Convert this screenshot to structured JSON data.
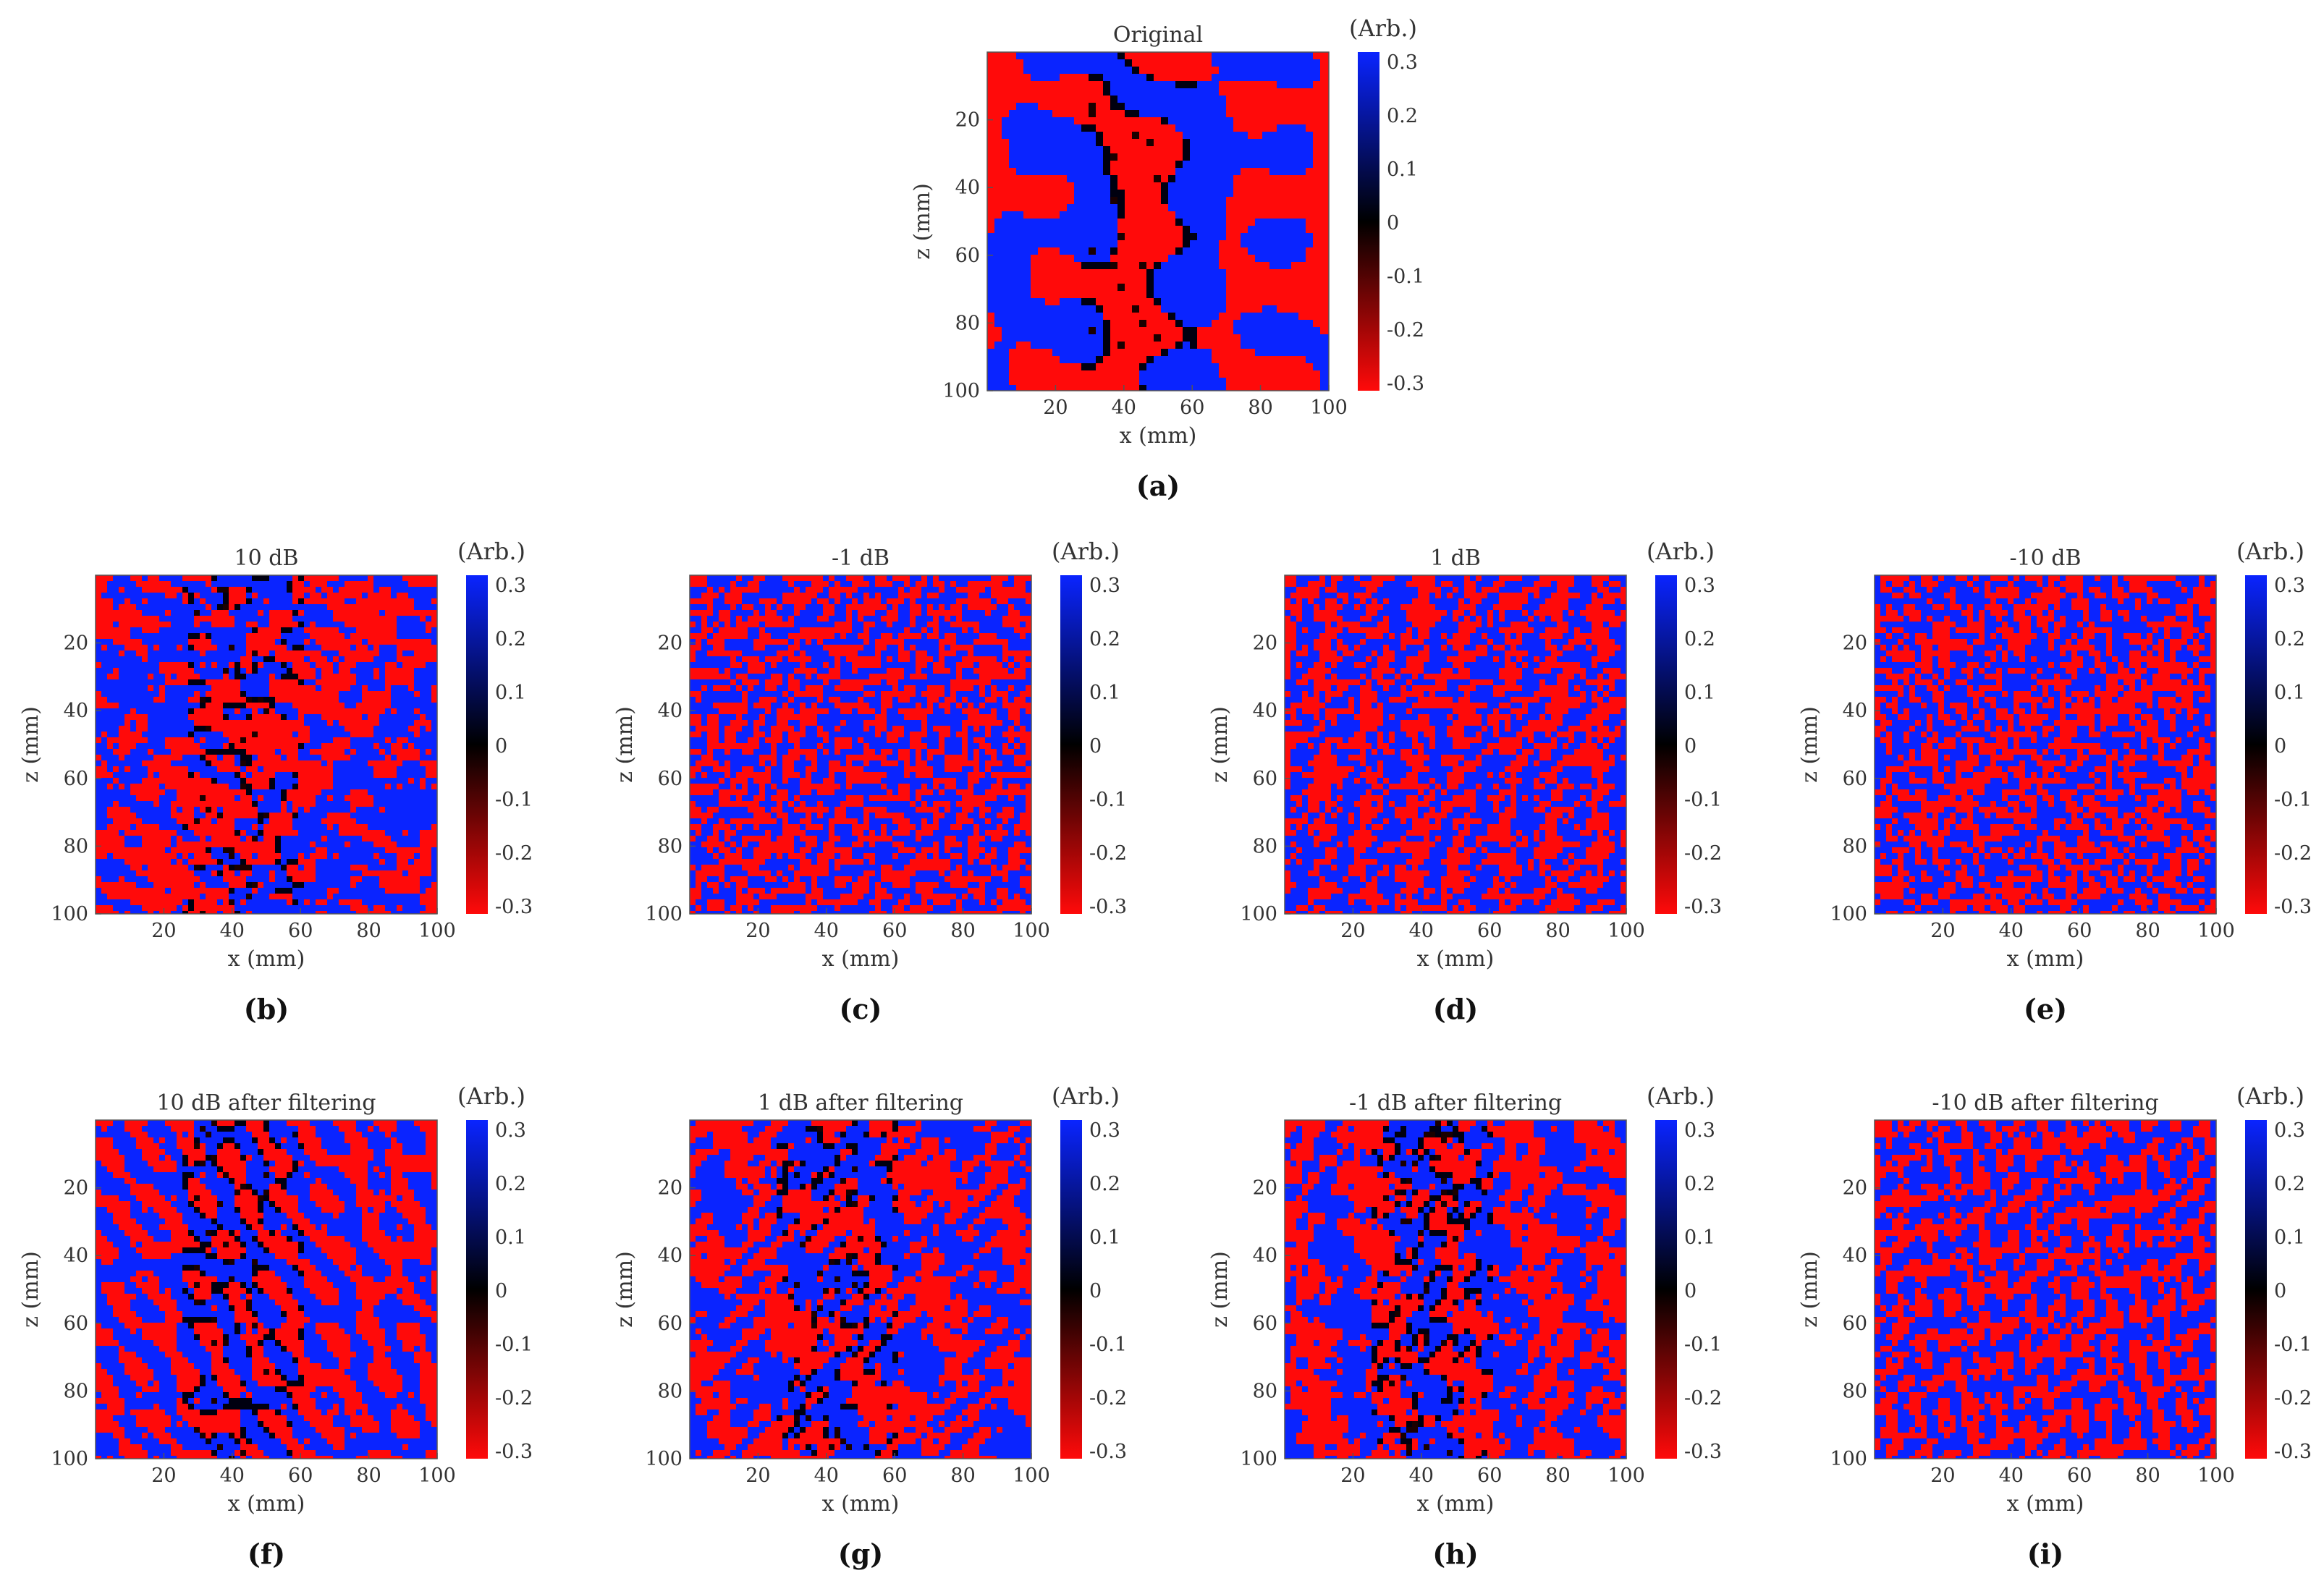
{
  "colorbar": {
    "unit": "(Arb.)",
    "ticks": [
      "0.3",
      "0.2",
      "0.1",
      "0",
      "-0.1",
      "-0.2",
      "-0.3"
    ],
    "tick_values": [
      0.3,
      0.2,
      0.1,
      0,
      -0.1,
      -0.2,
      -0.3
    ],
    "range": [
      -0.3,
      0.3
    ],
    "colors": {
      "high": "#0a24ff",
      "mid": "#000000",
      "low": "#ff0a0a"
    }
  },
  "axes": {
    "xlabel": "x (mm)",
    "ylabel": "z (mm)",
    "x_ticks": [
      "20",
      "40",
      "60",
      "80",
      "100"
    ],
    "x_tick_values": [
      20,
      40,
      60,
      80,
      100
    ],
    "y_ticks": [
      "20",
      "40",
      "60",
      "80",
      "100"
    ],
    "y_tick_values": [
      20,
      40,
      60,
      80,
      100
    ]
  },
  "chart_data": [
    {
      "type": "heatmap",
      "panel": "(a)",
      "title": "Original",
      "xlabel": "x (mm)",
      "ylabel": "z (mm)",
      "xlim": [
        0,
        100
      ],
      "ylim": [
        0,
        100
      ],
      "clim": [
        -0.3,
        0.3
      ],
      "colorbar_label": "(Arb.)"
    },
    {
      "type": "heatmap",
      "panel": "(b)",
      "title": "10 dB",
      "xlabel": "x (mm)",
      "ylabel": "z (mm)",
      "xlim": [
        0,
        100
      ],
      "ylim": [
        0,
        100
      ],
      "clim": [
        -0.3,
        0.3
      ],
      "colorbar_label": "(Arb.)"
    },
    {
      "type": "heatmap",
      "panel": "(c)",
      "title": "-1 dB",
      "xlabel": "x (mm)",
      "ylabel": "z (mm)",
      "xlim": [
        0,
        100
      ],
      "ylim": [
        0,
        100
      ],
      "clim": [
        -0.3,
        0.3
      ],
      "colorbar_label": "(Arb.)"
    },
    {
      "type": "heatmap",
      "panel": "(d)",
      "title": "1 dB",
      "xlabel": "x (mm)",
      "ylabel": "z (mm)",
      "xlim": [
        0,
        100
      ],
      "ylim": [
        0,
        100
      ],
      "clim": [
        -0.3,
        0.3
      ],
      "colorbar_label": "(Arb.)"
    },
    {
      "type": "heatmap",
      "panel": "(e)",
      "title": "-10 dB",
      "xlabel": "x (mm)",
      "ylabel": "z (mm)",
      "xlim": [
        0,
        100
      ],
      "ylim": [
        0,
        100
      ],
      "clim": [
        -0.3,
        0.3
      ],
      "colorbar_label": "(Arb.)"
    },
    {
      "type": "heatmap",
      "panel": "(f)",
      "title": "10 dB after filtering",
      "xlabel": "x (mm)",
      "ylabel": "z (mm)",
      "xlim": [
        0,
        100
      ],
      "ylim": [
        0,
        100
      ],
      "clim": [
        -0.3,
        0.3
      ],
      "colorbar_label": "(Arb.)"
    },
    {
      "type": "heatmap",
      "panel": "(g)",
      "title": "1 dB after filtering",
      "xlabel": "x (mm)",
      "ylabel": "z (mm)",
      "xlim": [
        0,
        100
      ],
      "ylim": [
        0,
        100
      ],
      "clim": [
        -0.3,
        0.3
      ],
      "colorbar_label": "(Arb.)"
    },
    {
      "type": "heatmap",
      "panel": "(h)",
      "title": "-1 dB after filtering",
      "xlabel": "x (mm)",
      "ylabel": "z (mm)",
      "xlim": [
        0,
        100
      ],
      "ylim": [
        0,
        100
      ],
      "clim": [
        -0.3,
        0.3
      ],
      "colorbar_label": "(Arb.)"
    },
    {
      "type": "heatmap",
      "panel": "(i)",
      "title": "-10 dB after filtering",
      "xlabel": "x (mm)",
      "ylabel": "z (mm)",
      "xlim": [
        0,
        100
      ],
      "ylim": [
        0,
        100
      ],
      "clim": [
        -0.3,
        0.3
      ],
      "colorbar_label": "(Arb.)"
    }
  ]
}
